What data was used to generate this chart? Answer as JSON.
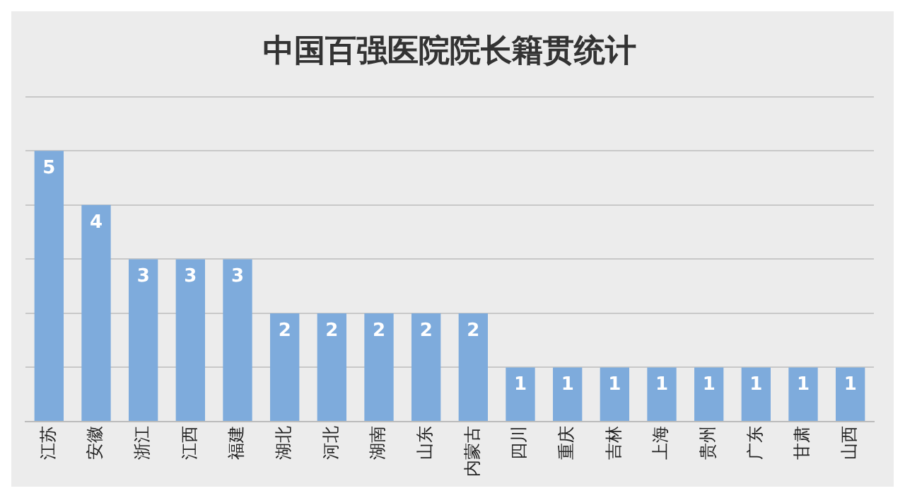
{
  "chart_data": {
    "type": "bar",
    "title": "中国百强医院院长籍贯统计",
    "categories": [
      "江苏",
      "安徽",
      "浙江",
      "江西",
      "福建",
      "湖北",
      "河北",
      "湖南",
      "山东",
      "内蒙古",
      "四川",
      "重庆",
      "吉林",
      "上海",
      "贵州",
      "广东",
      "甘肃",
      "山西"
    ],
    "values": [
      5,
      4,
      3,
      3,
      3,
      2,
      2,
      2,
      2,
      2,
      1,
      1,
      1,
      1,
      1,
      1,
      1,
      1
    ],
    "color": "#7eabdc",
    "ylim": [
      0,
      6
    ],
    "yticks": [
      {
        "value": 0,
        "label": null
      },
      {
        "value": 1,
        "label": null
      },
      {
        "value": 2,
        "label": null
      },
      {
        "value": 3,
        "label": null
      },
      {
        "value": 4,
        "label": null
      },
      {
        "value": 5,
        "label": null
      },
      {
        "value": 6,
        "label": null
      }
    ],
    "grid": "y",
    "tick_labels": "x",
    "data_labels": true,
    "legend": false
  }
}
